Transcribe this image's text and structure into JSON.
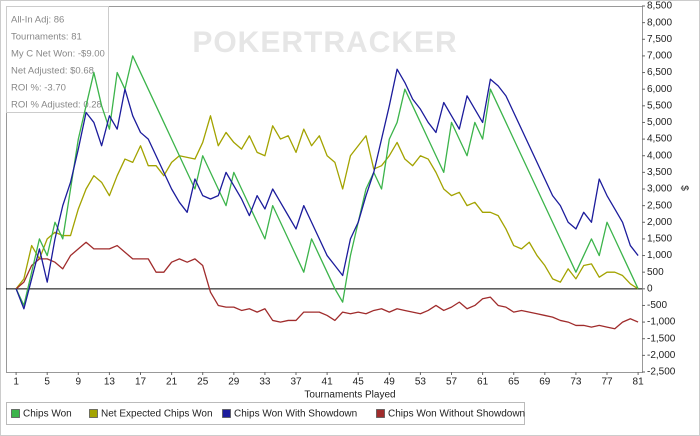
{
  "chart_data": {
    "type": "line",
    "info": [
      "All-In Adj: 86",
      "Tournaments: 81",
      "My C Net Won: -$9.00",
      "Net Adjusted: $0.68",
      "ROI %: -3.70",
      "ROI % Adjusted: 0.28"
    ],
    "watermark": "POKERTRACKER",
    "x_label": "Tournaments Played",
    "y_label": "$",
    "x": [
      1,
      2,
      3,
      4,
      5,
      6,
      7,
      8,
      9,
      10,
      11,
      12,
      13,
      14,
      15,
      16,
      17,
      18,
      19,
      20,
      21,
      22,
      23,
      24,
      25,
      26,
      27,
      28,
      29,
      30,
      31,
      32,
      33,
      34,
      35,
      36,
      37,
      38,
      39,
      40,
      41,
      42,
      43,
      44,
      45,
      46,
      47,
      48,
      49,
      50,
      51,
      52,
      53,
      54,
      55,
      56,
      57,
      58,
      59,
      60,
      61,
      62,
      63,
      64,
      65,
      66,
      67,
      68,
      69,
      70,
      71,
      72,
      73,
      74,
      75,
      76,
      77,
      78,
      79,
      80,
      81
    ],
    "xlim": [
      -0.3,
      81.5
    ],
    "xticks": [
      1,
      5,
      9,
      13,
      17,
      21,
      25,
      29,
      33,
      37,
      41,
      45,
      49,
      53,
      57,
      61,
      65,
      69,
      73,
      77,
      81
    ],
    "ylim": [
      -2500,
      8500
    ],
    "yticks": [
      {
        "value": -2500,
        "label": "-2,500"
      },
      {
        "value": -2000,
        "label": "-2,000"
      },
      {
        "value": -1500,
        "label": "-1,500"
      },
      {
        "value": -1000,
        "label": "-1,000"
      },
      -500,
      0,
      500,
      {
        "value": 1000,
        "label": "1,000"
      },
      {
        "value": 1500,
        "label": "1,500"
      },
      {
        "value": 2000,
        "label": "2,000"
      },
      {
        "value": 2500,
        "label": "2,500"
      },
      {
        "value": 3000,
        "label": "3,000"
      },
      {
        "value": 3500,
        "label": "3,500"
      },
      {
        "value": 4000,
        "label": "4,000"
      },
      {
        "value": 4500,
        "label": "4,500"
      },
      {
        "value": 5000,
        "label": "5,000"
      },
      {
        "value": 5500,
        "label": "5,500"
      },
      {
        "value": 6000,
        "label": "6,000"
      },
      {
        "value": 6500,
        "label": "6,500"
      },
      {
        "value": 7000,
        "label": "7,000"
      },
      {
        "value": 7500,
        "label": "7,500"
      },
      {
        "value": 8000,
        "label": "8,000"
      },
      {
        "value": 8500,
        "label": "8,500"
      }
    ],
    "grid": false,
    "series": [
      {
        "name": "Chips Won",
        "color": "#3cb44b",
        "values": [
          0,
          -500,
          500,
          1500,
          1000,
          2000,
          1500,
          3000,
          4500,
          5500,
          6500,
          5500,
          4800,
          6500,
          6000,
          7000,
          6500,
          6000,
          5500,
          5000,
          4500,
          4000,
          3500,
          3000,
          4000,
          3500,
          3000,
          2500,
          3500,
          3000,
          2500,
          2000,
          1500,
          2500,
          2000,
          1500,
          1000,
          500,
          1500,
          1000,
          500,
          0,
          -400,
          1000,
          2000,
          3000,
          3500,
          3000,
          4500,
          5000,
          6000,
          5500,
          5000,
          4500,
          4000,
          3500,
          5000,
          4500,
          4000,
          5000,
          4500,
          6000,
          5500,
          5000,
          4500,
          4000,
          3500,
          3000,
          2500,
          2000,
          1500,
          1000,
          500,
          1000,
          1500,
          1000,
          2000,
          1500,
          1000,
          500,
          0
        ]
      },
      {
        "name": "Net Expected Chips Won",
        "color": "#a3a300",
        "values": [
          0,
          300,
          1300,
          900,
          1500,
          1700,
          1600,
          1600,
          2400,
          3000,
          3400,
          3200,
          2800,
          3400,
          3900,
          3800,
          4300,
          3700,
          3700,
          3400,
          3800,
          4000,
          3950,
          3900,
          4400,
          5200,
          4300,
          4700,
          4400,
          4200,
          4600,
          4100,
          4000,
          4900,
          4500,
          4600,
          4100,
          4800,
          4300,
          4600,
          4000,
          3800,
          3000,
          4000,
          4300,
          4600,
          3600,
          3700,
          4000,
          4400,
          3900,
          3700,
          4000,
          3900,
          3500,
          3000,
          2800,
          2900,
          2500,
          2600,
          2300,
          2300,
          2200,
          1800,
          1300,
          1200,
          1400,
          1000,
          700,
          300,
          200,
          600,
          300,
          700,
          750,
          350,
          500,
          500,
          400,
          150,
          0
        ]
      },
      {
        "name": "Chips Won With Showdown",
        "color": "#1c1c9c",
        "values": [
          0,
          -600,
          300,
          1200,
          200,
          1500,
          2500,
          3200,
          4200,
          5300,
          5000,
          4300,
          5200,
          4800,
          6000,
          5200,
          4700,
          4500,
          4000,
          3500,
          3000,
          2600,
          2300,
          3300,
          2800,
          2700,
          2800,
          3500,
          3100,
          2700,
          2200,
          2800,
          2400,
          3000,
          2600,
          2200,
          1800,
          2500,
          2000,
          1500,
          1000,
          700,
          400,
          1500,
          2000,
          2800,
          3500,
          4500,
          5500,
          6600,
          6200,
          5700,
          5400,
          5000,
          4700,
          5600,
          5200,
          4800,
          5800,
          5400,
          5000,
          6300,
          6100,
          5800,
          5300,
          4800,
          4300,
          3800,
          3300,
          2800,
          2500,
          2000,
          1800,
          2300,
          2000,
          3300,
          2800,
          2400,
          2000,
          1300,
          1000
        ]
      },
      {
        "name": "Chips Won Without Showdown",
        "color": "#a02c2c",
        "values": [
          0,
          200,
          700,
          900,
          900,
          800,
          600,
          1000,
          1200,
          1400,
          1200,
          1200,
          1200,
          1300,
          1100,
          900,
          900,
          900,
          500,
          500,
          800,
          900,
          800,
          900,
          700,
          -100,
          -500,
          -550,
          -550,
          -650,
          -600,
          -700,
          -600,
          -950,
          -1000,
          -950,
          -950,
          -700,
          -700,
          -700,
          -800,
          -950,
          -700,
          -750,
          -700,
          -750,
          -650,
          -600,
          -700,
          -600,
          -650,
          -700,
          -750,
          -650,
          -500,
          -650,
          -550,
          -400,
          -600,
          -500,
          -300,
          -250,
          -500,
          -550,
          -700,
          -650,
          -700,
          -750,
          -800,
          -850,
          -950,
          -1000,
          -1100,
          -1100,
          -1150,
          -1100,
          -1150,
          -1200,
          -1000,
          -900,
          -1000
        ]
      }
    ]
  }
}
